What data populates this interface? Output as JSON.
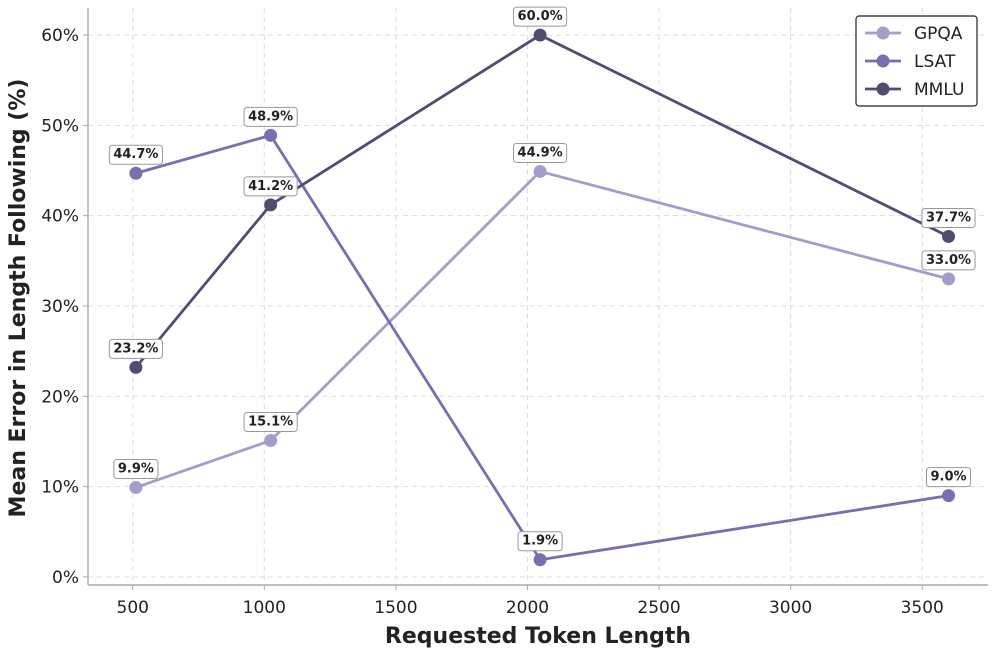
{
  "chart_data": {
    "type": "line",
    "title": "",
    "xlabel": "Requested Token Length",
    "ylabel": "Mean Error in Length Following (%)",
    "xlim": [
      330,
      3750
    ],
    "ylim": [
      -0.9,
      63.0
    ],
    "x_ticks": [
      500,
      1000,
      1500,
      2000,
      2500,
      3000,
      3500
    ],
    "y_ticks": [
      0,
      10,
      20,
      30,
      40,
      50,
      60
    ],
    "y_tick_suffix": "%",
    "grid": true,
    "legend_position": "top-right",
    "series": [
      {
        "name": "GPQA",
        "color": "#a39dcb",
        "x": [
          512,
          1024,
          2048,
          3600
        ],
        "values": [
          9.9,
          15.1,
          44.9,
          33.0
        ],
        "labels": [
          "9.9%",
          "15.1%",
          "44.9%",
          "33.0%"
        ]
      },
      {
        "name": "LSAT",
        "color": "#7a6db0",
        "x": [
          512,
          1024,
          2048,
          3600
        ],
        "values": [
          44.7,
          48.9,
          1.9,
          9.0
        ],
        "labels": [
          "44.7%",
          "48.9%",
          "1.9%",
          "9.0%"
        ]
      },
      {
        "name": "MMLU",
        "color": "#524c72",
        "x": [
          512,
          1024,
          2048,
          3600
        ],
        "values": [
          23.2,
          41.2,
          60.0,
          37.7
        ],
        "labels": [
          "23.2%",
          "41.2%",
          "60.0%",
          "37.7%"
        ]
      }
    ]
  }
}
